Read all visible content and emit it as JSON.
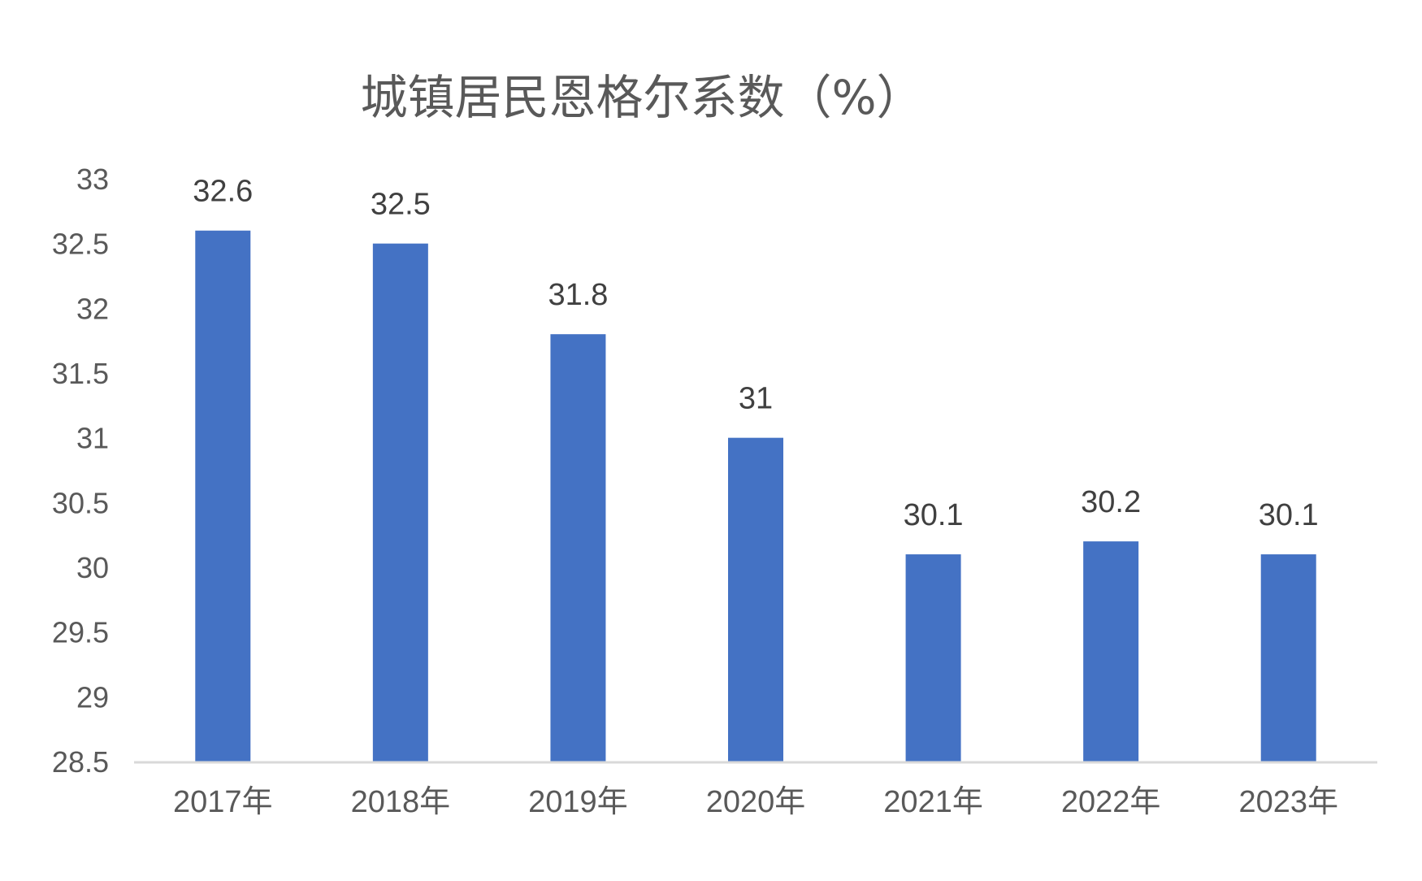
{
  "chart_data": {
    "type": "bar",
    "title": "城镇居民恩格尔系数（%）",
    "xlabel": "",
    "ylabel": "",
    "categories": [
      "2017年",
      "2018年",
      "2019年",
      "2020年",
      "2021年",
      "2022年",
      "2023年"
    ],
    "values": [
      32.6,
      32.5,
      31.8,
      31,
      30.1,
      30.2,
      30.1
    ],
    "data_labels": [
      "32.6",
      "32.5",
      "31.8",
      "31",
      "30.1",
      "30.2",
      "30.1"
    ],
    "ylim": [
      28.5,
      33
    ],
    "yticks": [
      28.5,
      29,
      29.5,
      30,
      30.5,
      31,
      31.5,
      32,
      32.5,
      33
    ],
    "ytick_labels": [
      "28.5",
      "29",
      "29.5",
      "30",
      "30.5",
      "31",
      "31.5",
      "32",
      "32.5",
      "33"
    ],
    "grid": false,
    "legend": "none",
    "bar_color": "#4472C4",
    "axis_color": "#D9D9D9"
  }
}
